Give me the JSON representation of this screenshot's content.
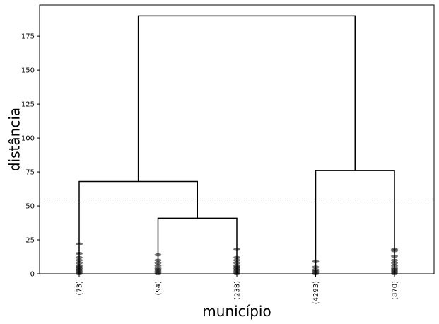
{
  "chart_data": {
    "type": "dendrogram",
    "xlabel": "município",
    "ylabel": "distância",
    "ylim": [
      0,
      198
    ],
    "yticks": [
      0,
      25,
      50,
      75,
      100,
      125,
      150,
      175
    ],
    "threshold": 55,
    "leaves": [
      "(73)",
      "(94)",
      "(238)",
      "(4293)",
      "(870)"
    ],
    "merges": [
      {
        "left": 1,
        "right": 2,
        "height": 41
      },
      {
        "left": 0,
        "right": "m0",
        "height": 68
      },
      {
        "left": 3,
        "right": 4,
        "height": 76
      },
      {
        "left": "m1",
        "right": "m2",
        "height": 190
      }
    ],
    "leaf_sub_heights": [
      [
        0,
        1,
        2,
        3,
        4,
        5,
        6,
        8,
        10,
        12,
        15,
        22
      ],
      [
        0,
        1,
        2,
        3,
        4,
        6,
        8,
        10,
        14
      ],
      [
        0,
        1,
        2,
        3,
        4,
        5,
        6,
        8,
        10,
        12,
        18
      ],
      [
        0,
        1,
        2,
        3,
        5,
        9
      ],
      [
        0,
        1,
        2,
        3,
        4,
        6,
        8,
        10,
        13,
        17,
        18
      ]
    ]
  }
}
